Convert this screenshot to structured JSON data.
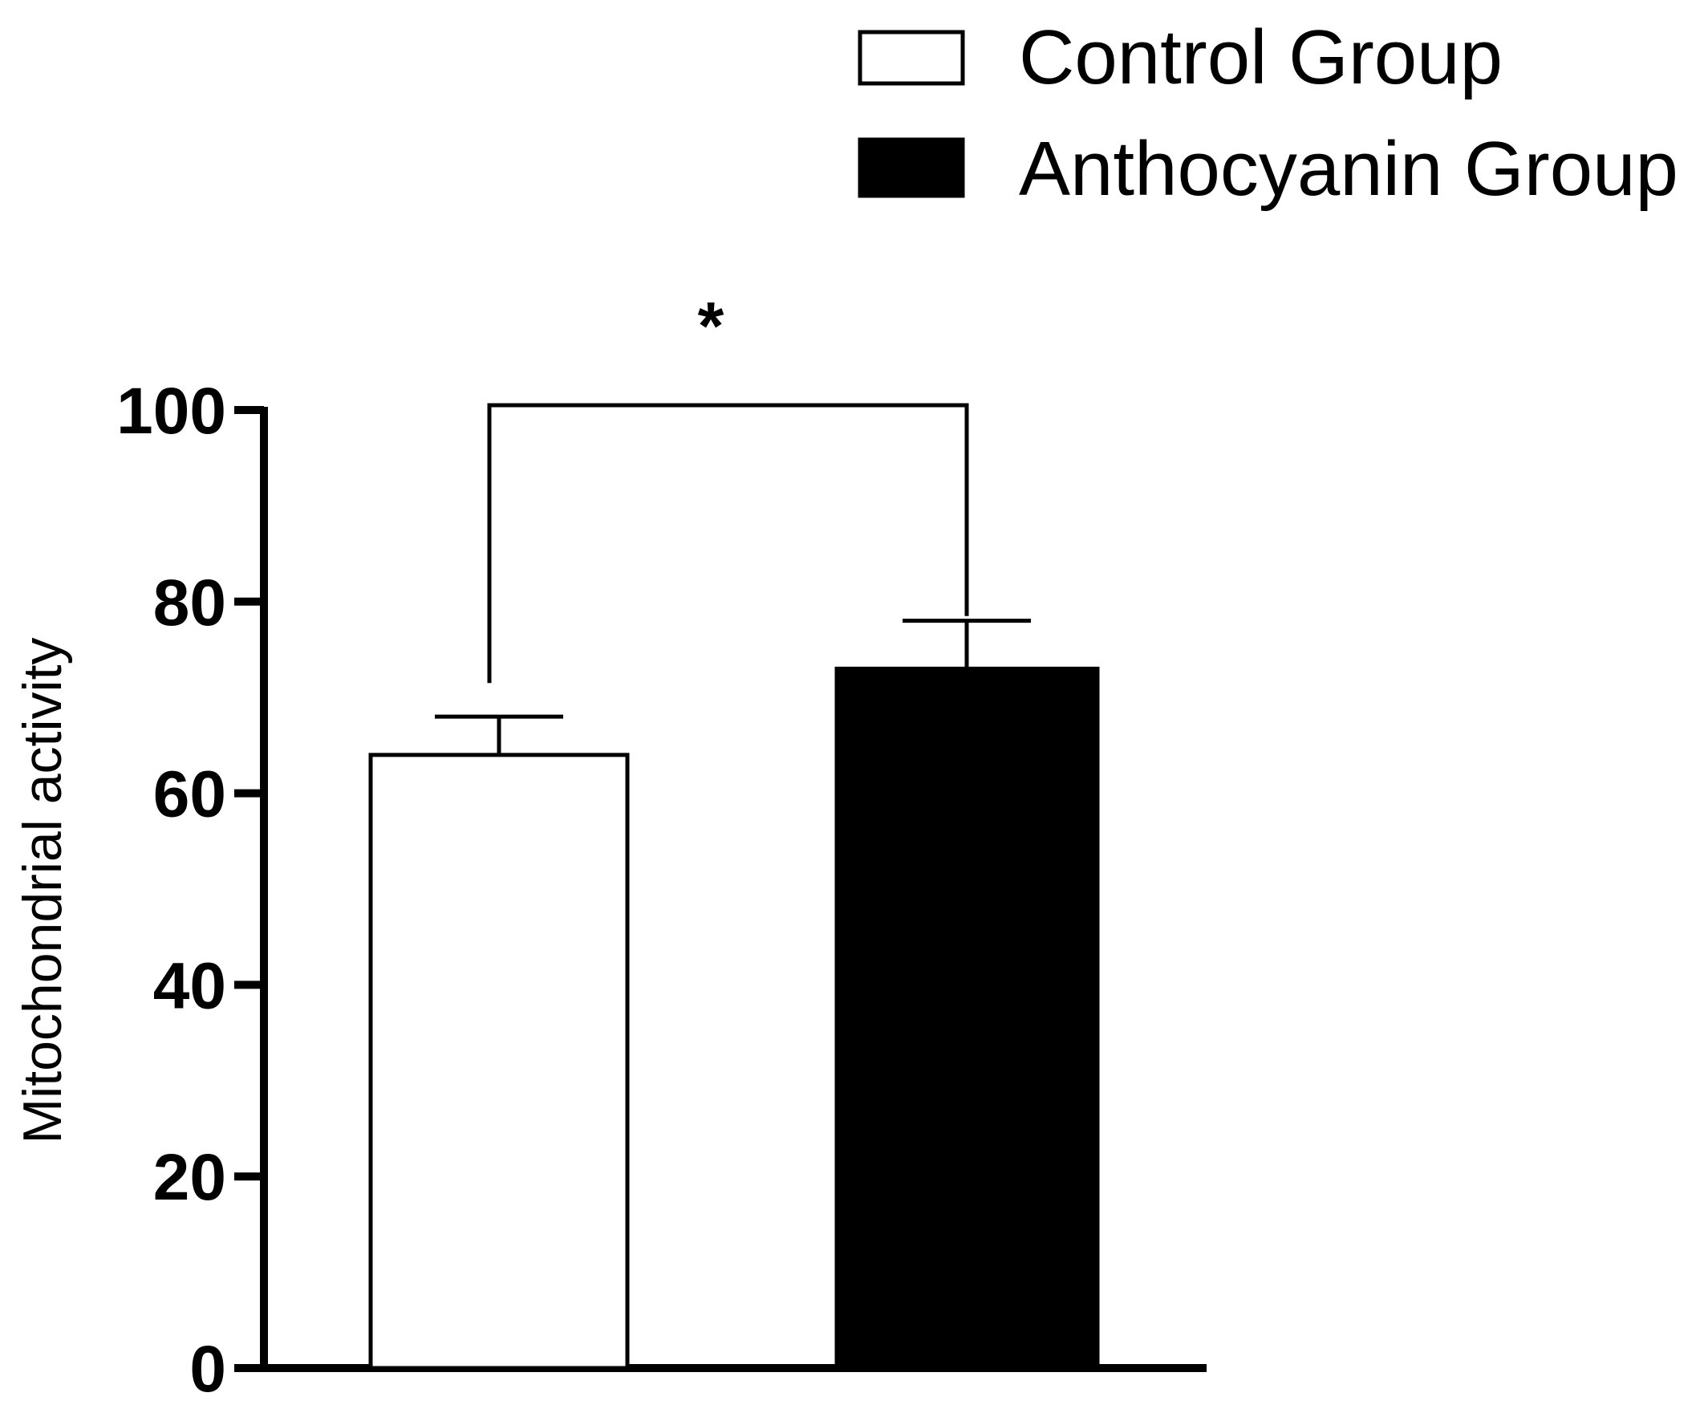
{
  "chart_data": {
    "type": "bar",
    "title": "",
    "xlabel": "",
    "ylabel": "Mitochondrial activity",
    "ylim": [
      0,
      100
    ],
    "yticks": [
      0,
      20,
      40,
      60,
      80,
      100
    ],
    "ytick_labels": [
      "0",
      "20",
      "40",
      "60",
      "80",
      "100"
    ],
    "grid": false,
    "legend_position": "top-right",
    "series": [
      {
        "name": "Control Group",
        "value": 64,
        "error": 4,
        "fill": "#ffffff",
        "stroke": "#000000"
      },
      {
        "name": "Anthocyanin Group",
        "value": 73,
        "error": 5,
        "fill": "#000000",
        "stroke": "#000000"
      }
    ],
    "significance": {
      "label": "*",
      "between": [
        0,
        1
      ],
      "bracket_top": 100.5
    }
  }
}
